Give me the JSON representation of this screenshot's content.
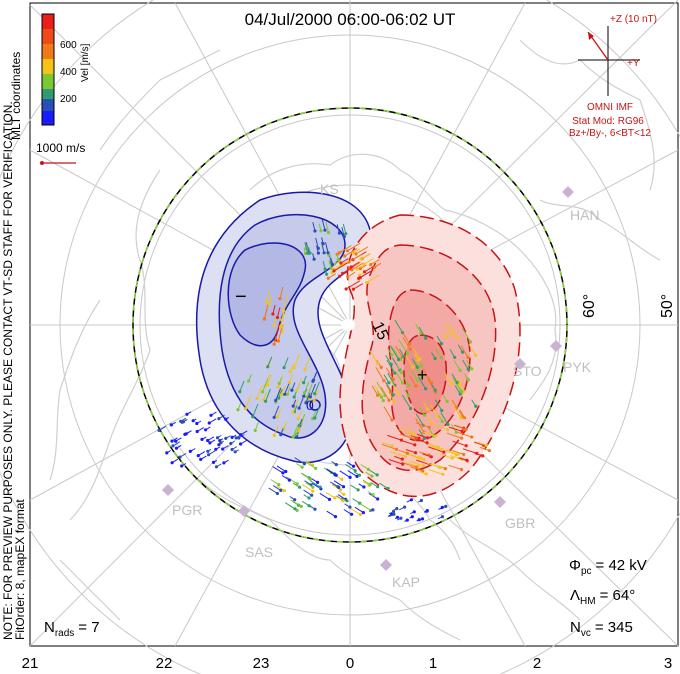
{
  "header": {
    "title": "04/Jul/2000 06:00-06:02 UT"
  },
  "side_note": {
    "line1": "NOTE: FOR PREVIEW PURPOSES ONLY. PLEASE CONTACT VT-SD STAFF FOR VERIFICATION.",
    "line2": "FitOrder: 8, mapEX format"
  },
  "coords_label": "MLT coordinates",
  "colorbar": {
    "title": "Vel [m/s]",
    "ticks": [
      "600",
      "400",
      "200"
    ],
    "colors": [
      "#e8201b",
      "#f07a1a",
      "#f2c41a",
      "#7cc832",
      "#2e9e6e",
      "#2a4fb8",
      "#1a1aff"
    ]
  },
  "scale": {
    "label": "1000 m/s"
  },
  "imf": {
    "z_label": "+Z (10 nT)",
    "y_label": "+Y",
    "source": "OMNI IMF",
    "model_line1": "Stat Mod: RG96",
    "model_line2": "Bz+/By-, 6<BT<12"
  },
  "latitudes": {
    "lat60": "60°",
    "lat50": "50°"
  },
  "stations": [
    {
      "name": "HAN"
    },
    {
      "name": "STO"
    },
    {
      "name": "PYK"
    },
    {
      "name": "PGR"
    },
    {
      "name": "SAS"
    },
    {
      "name": "KAP"
    },
    {
      "name": "GBR"
    },
    {
      "name": "KS"
    }
  ],
  "contours": {
    "neg_sign": "−",
    "pos_sign": "+",
    "label_15": "15",
    "label_0": "0"
  },
  "mlt_labels": [
    "21",
    "22",
    "23",
    "0",
    "1",
    "2",
    "3"
  ],
  "stats": {
    "phi_sym": "Φ",
    "phi_sub": "pc",
    "phi_val": "= 42 kV",
    "lam_sym": "Λ",
    "lam_sub": "HM",
    "lam_val": "= 64°",
    "nvc_sym": "N",
    "nvc_sub": "vc",
    "nvc_val": "= 345",
    "nrads_sym": "N",
    "nrads_sub": "rads",
    "nrads_val": "= 7"
  },
  "colors": {
    "neg_fill": "#b8bde8",
    "pos_fill": "#f2a9a5",
    "neg_line": "#1a1aa8",
    "pos_line": "#c81414",
    "grid": "#c8c8c8",
    "coast": "#cfcfcf"
  }
}
